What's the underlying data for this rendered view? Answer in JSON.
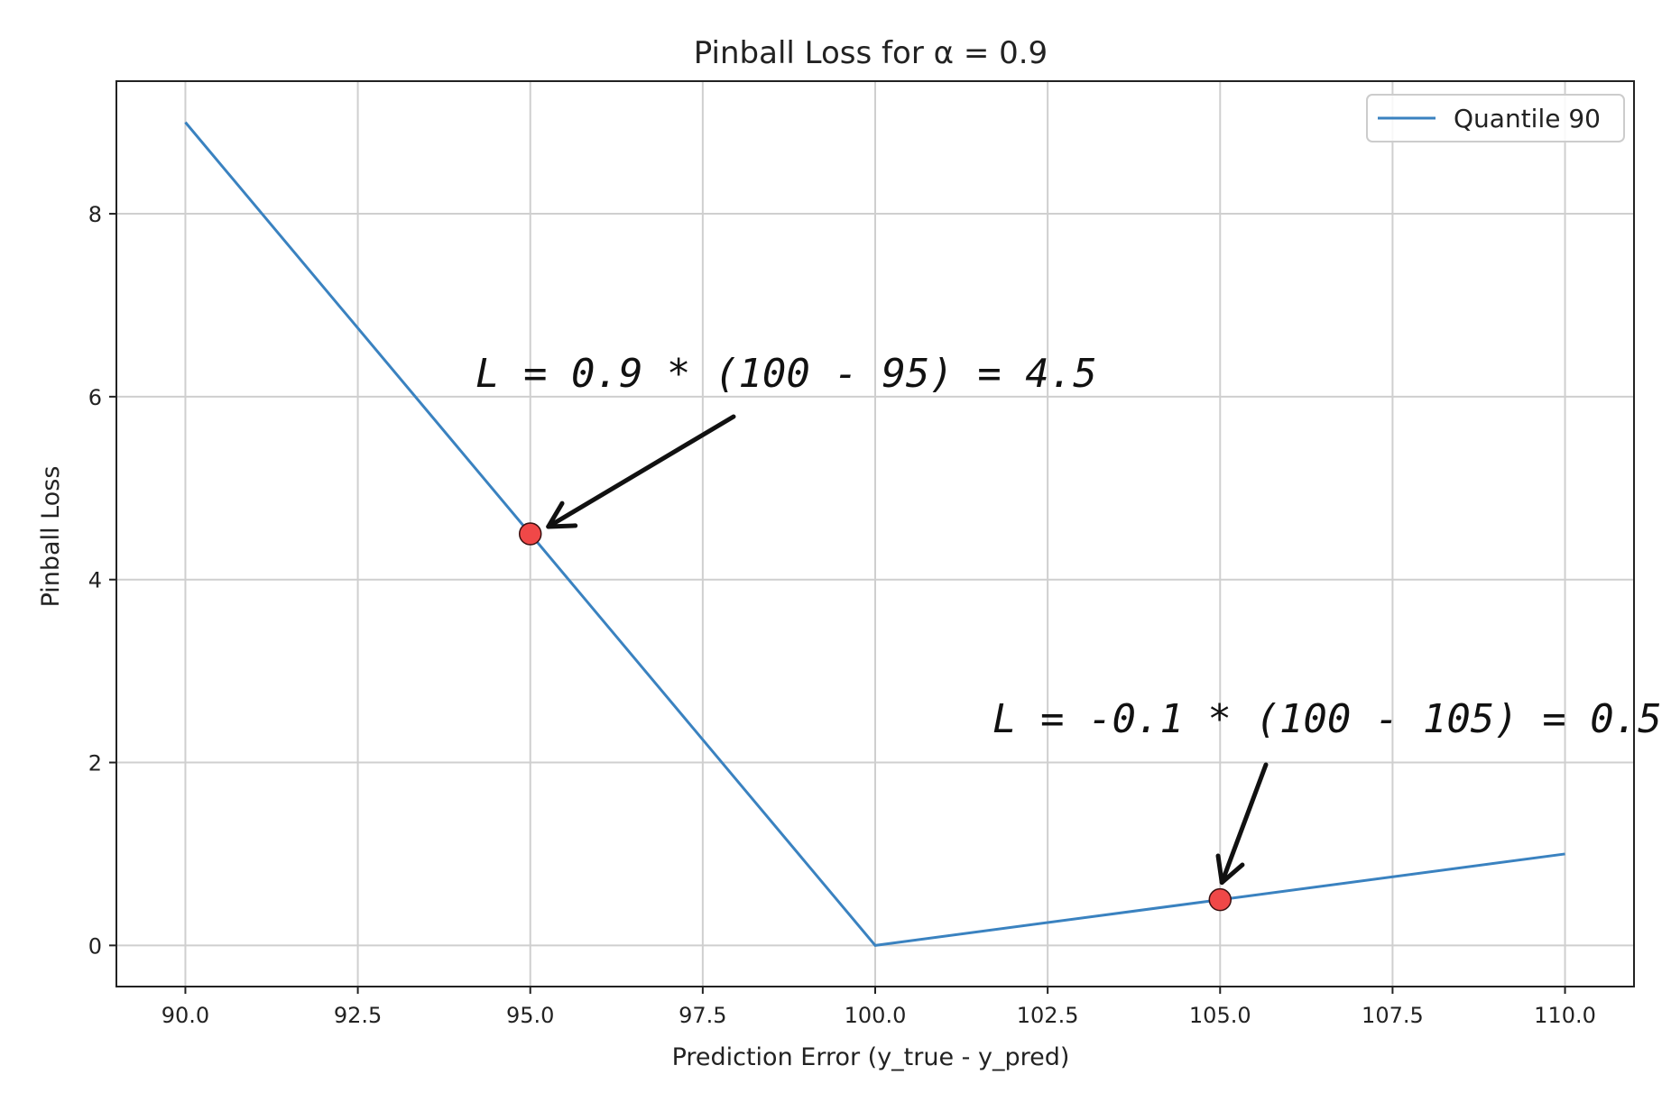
{
  "chart_data": {
    "type": "line",
    "title": "Pinball Loss for α = 0.9",
    "xlabel": "Prediction Error (y_true - y_pred)",
    "ylabel": "Pinball Loss",
    "xlim": [
      89.0,
      111.0
    ],
    "ylim": [
      -0.45,
      9.45
    ],
    "x_ticks": [
      90.0,
      92.5,
      95.0,
      97.5,
      100.0,
      102.5,
      105.0,
      107.5,
      110.0
    ],
    "x_tick_labels": [
      "90.0",
      "92.5",
      "95.0",
      "97.5",
      "100.0",
      "102.5",
      "105.0",
      "107.5",
      "110.0"
    ],
    "y_ticks": [
      0,
      2,
      4,
      6,
      8
    ],
    "y_tick_labels": [
      "0",
      "2",
      "4",
      "6",
      "8"
    ],
    "grid": true,
    "legend_position": "top-right",
    "series": [
      {
        "name": "Quantile 90",
        "color": "#3a82c0",
        "x": [
          90.0,
          100.0,
          110.0
        ],
        "y": [
          9.0,
          0.0,
          1.0
        ]
      }
    ],
    "highlight_points": [
      {
        "x": 95.0,
        "y": 4.5,
        "color": "#f04848"
      },
      {
        "x": 105.0,
        "y": 0.5,
        "color": "#f04848"
      }
    ],
    "annotations": [
      {
        "text": "L = 0.9 * (100 - 95) = 4.5",
        "target_x": 95.0,
        "target_y": 4.5
      },
      {
        "text": "L = -0.1 * (100 - 105) = 0.5",
        "target_x": 105.0,
        "target_y": 0.5
      }
    ]
  }
}
